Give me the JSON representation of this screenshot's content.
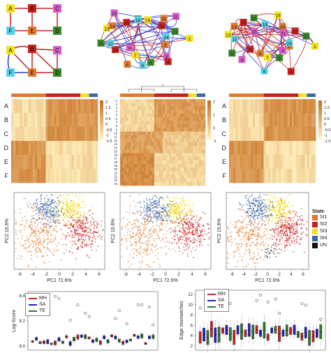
{
  "small_graphs": {
    "g1": [
      "A",
      "B",
      "C",
      "F",
      "E",
      "D"
    ],
    "g2": [
      "A",
      "B",
      "C",
      "F",
      "E",
      "D"
    ]
  },
  "big_graph_labels": [
    "1",
    "2",
    "3",
    "4",
    "5",
    "6",
    "7",
    "8",
    "9",
    "10",
    "11",
    "12",
    "13",
    "14",
    "15",
    "16",
    "17",
    "18",
    "19",
    "20",
    "21",
    "22",
    "23",
    "24"
  ],
  "heatmaps": {
    "rows": [
      "A",
      "B",
      "C",
      "D",
      "E",
      "F"
    ],
    "mid_rows": [
      "1",
      "2",
      "3",
      "4",
      "5",
      "6",
      "7",
      "8",
      "9",
      "10",
      "11",
      "12",
      "13",
      "14",
      "15",
      "16",
      "17",
      "18",
      "19",
      "20",
      "21",
      "22",
      "23",
      "24"
    ],
    "colorbar_ticks": [
      "2",
      "1.5",
      "1",
      "0.5",
      "0",
      "-0.5",
      "-1",
      "-1.5"
    ],
    "mid_colorbar_ticks": [
      "2",
      "1",
      "0",
      "-1"
    ]
  },
  "pca": {
    "xlabel": "PC1 72.6%",
    "ylabel": "PC2 15.6%",
    "xticks": [
      "-6",
      "-4",
      "-2",
      "0",
      "2",
      "4",
      "6"
    ],
    "state_title": "State",
    "states": [
      {
        "label": "St1",
        "color": "#e07a2c"
      },
      {
        "label": "St2",
        "color": "#c8201e"
      },
      {
        "label": "St3",
        "color": "#f2e11c"
      },
      {
        "label": "St4",
        "color": "#3b66b0"
      },
      {
        "label": "UN",
        "color": "#111111"
      }
    ]
  },
  "boxplot_left": {
    "ylabel": "Log-Score",
    "yticks": [
      "8.0",
      "8.2",
      "8.4"
    ],
    "legend": [
      {
        "label": "MH",
        "color": "#d02020"
      },
      {
        "label": "SA",
        "color": "#2020c8"
      },
      {
        "label": "TE",
        "color": "#2e7a2e"
      }
    ]
  },
  "boxplot_right": {
    "ylabel": "Edge mismatches",
    "yticks": [
      "2",
      "4",
      "6",
      "8",
      "10",
      "12"
    ],
    "legend": [
      {
        "label": "MH",
        "color": "#d02020"
      },
      {
        "label": "SA",
        "color": "#2020c8"
      },
      {
        "label": "TE",
        "color": "#2e7a2e"
      }
    ]
  },
  "colors": {
    "red": "#c8201e",
    "orange": "#e07a2c",
    "blue": "#2b3bd0",
    "yellow": "#f2e11c",
    "cyan": "#5ad0e8",
    "green": "#3a8a28",
    "magenta": "#d85ac8"
  }
}
